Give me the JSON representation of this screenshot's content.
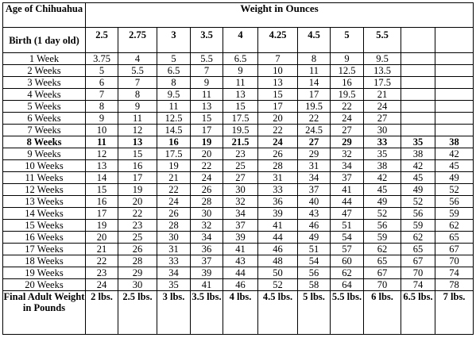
{
  "header": {
    "age_label": "Age of Chihuahua",
    "weight_label": "Weight in Ounces"
  },
  "birth_row": {
    "label": "Birth (1 day old)",
    "values": [
      "2.5",
      "2.75",
      "3",
      "3.5",
      "4",
      "4.25",
      "4.5",
      "5",
      "5.5",
      "",
      ""
    ]
  },
  "rows": [
    {
      "label": "1 Week",
      "bold": false,
      "values": [
        "3.75",
        "4",
        "5",
        "5.5",
        "6.5",
        "7",
        "8",
        "9",
        "9.5",
        "",
        ""
      ]
    },
    {
      "label": "2 Weeks",
      "bold": false,
      "values": [
        "5",
        "5.5",
        "6.5",
        "7",
        "9",
        "10",
        "11",
        "12.5",
        "13.5",
        "",
        ""
      ]
    },
    {
      "label": "3 Weeks",
      "bold": false,
      "values": [
        "6",
        "7",
        "8",
        "9",
        "11",
        "13",
        "14",
        "16",
        "17.5",
        "",
        ""
      ]
    },
    {
      "label": "4 Weeks",
      "bold": false,
      "values": [
        "7",
        "8",
        "9.5",
        "11",
        "13",
        "15",
        "17",
        "19.5",
        "21",
        "",
        ""
      ]
    },
    {
      "label": "5 Weeks",
      "bold": false,
      "values": [
        "8",
        "9",
        "11",
        "13",
        "15",
        "17",
        "19.5",
        "22",
        "24",
        "",
        ""
      ]
    },
    {
      "label": "6 Weeks",
      "bold": false,
      "values": [
        "9",
        "11",
        "12.5",
        "15",
        "17.5",
        "20",
        "22",
        "24",
        "27",
        "",
        ""
      ]
    },
    {
      "label": "7 Weeks",
      "bold": false,
      "values": [
        "10",
        "12",
        "14.5",
        "17",
        "19.5",
        "22",
        "24.5",
        "27",
        "30",
        "",
        ""
      ]
    },
    {
      "label": "8 Weeks",
      "bold": true,
      "values": [
        "11",
        "13",
        "16",
        "19",
        "21.5",
        "24",
        "27",
        "29",
        "33",
        "35",
        "38"
      ]
    },
    {
      "label": "9 Weeks",
      "bold": false,
      "values": [
        "12",
        "15",
        "17.5",
        "20",
        "23",
        "26",
        "29",
        "32",
        "35",
        "38",
        "42"
      ]
    },
    {
      "label": "10 Weeks",
      "bold": false,
      "values": [
        "13",
        "16",
        "19",
        "22",
        "25",
        "28",
        "31",
        "34",
        "38",
        "42",
        "45"
      ]
    },
    {
      "label": "11 Weeks",
      "bold": false,
      "values": [
        "14",
        "17",
        "21",
        "24",
        "27",
        "31",
        "34",
        "37",
        "42",
        "45",
        "49"
      ]
    },
    {
      "label": "12 Weeks",
      "bold": false,
      "values": [
        "15",
        "19",
        "22",
        "26",
        "30",
        "33",
        "37",
        "41",
        "45",
        "49",
        "52"
      ]
    },
    {
      "label": "13 Weeks",
      "bold": false,
      "values": [
        "16",
        "20",
        "24",
        "28",
        "32",
        "36",
        "40",
        "44",
        "49",
        "52",
        "56"
      ]
    },
    {
      "label": "14 Weeks",
      "bold": false,
      "values": [
        "17",
        "22",
        "26",
        "30",
        "34",
        "39",
        "43",
        "47",
        "52",
        "56",
        "59"
      ]
    },
    {
      "label": "15 Weeks",
      "bold": false,
      "values": [
        "19",
        "23",
        "28",
        "32",
        "37",
        "41",
        "46",
        "51",
        "56",
        "59",
        "62"
      ]
    },
    {
      "label": "16 Weeks",
      "bold": false,
      "values": [
        "20",
        "25",
        "30",
        "34",
        "39",
        "44",
        "49",
        "54",
        "59",
        "62",
        "65"
      ]
    },
    {
      "label": "17 Weeks",
      "bold": false,
      "values": [
        "21",
        "26",
        "31",
        "36",
        "41",
        "46",
        "51",
        "57",
        "62",
        "65",
        "67"
      ]
    },
    {
      "label": "18 Weeks",
      "bold": false,
      "values": [
        "22",
        "28",
        "33",
        "37",
        "43",
        "48",
        "54",
        "60",
        "65",
        "67",
        "70"
      ]
    },
    {
      "label": "19 Weeks",
      "bold": false,
      "values": [
        "23",
        "29",
        "34",
        "39",
        "44",
        "50",
        "56",
        "62",
        "67",
        "70",
        "74"
      ]
    },
    {
      "label": "20 Weeks",
      "bold": false,
      "values": [
        "24",
        "30",
        "35",
        "41",
        "46",
        "52",
        "58",
        "64",
        "70",
        "74",
        "78"
      ]
    }
  ],
  "final_row": {
    "label": "Final Adult Weight in Pounds",
    "values": [
      "2 lbs.",
      "2.5 lbs.",
      "3 lbs.",
      "3.5 lbs.",
      "4 lbs.",
      "4.5 lbs.",
      "5 lbs.",
      "5.5 lbs.",
      "6 lbs.",
      "6.5 lbs.",
      "7 lbs."
    ]
  }
}
